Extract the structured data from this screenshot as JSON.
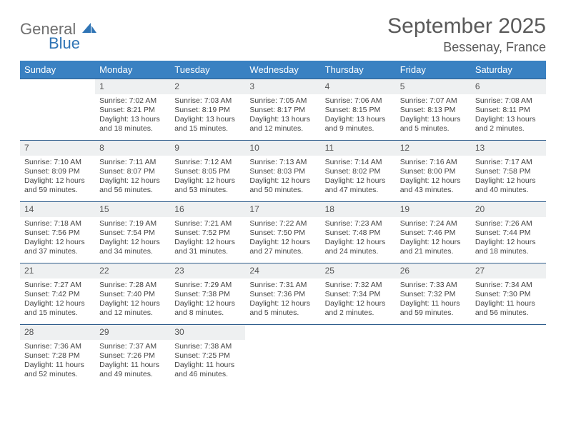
{
  "brand": {
    "name1": "General",
    "name2": "Blue"
  },
  "title": "September 2025",
  "location": "Bessenay, France",
  "header_color": "#3a81c2",
  "border_color": "#2f5d8c",
  "weekdays": [
    "Sunday",
    "Monday",
    "Tuesday",
    "Wednesday",
    "Thursday",
    "Friday",
    "Saturday"
  ],
  "weeks": [
    [
      null,
      {
        "d": "1",
        "sr": "Sunrise: 7:02 AM",
        "ss": "Sunset: 8:21 PM",
        "dl1": "Daylight: 13 hours",
        "dl2": "and 18 minutes."
      },
      {
        "d": "2",
        "sr": "Sunrise: 7:03 AM",
        "ss": "Sunset: 8:19 PM",
        "dl1": "Daylight: 13 hours",
        "dl2": "and 15 minutes."
      },
      {
        "d": "3",
        "sr": "Sunrise: 7:05 AM",
        "ss": "Sunset: 8:17 PM",
        "dl1": "Daylight: 13 hours",
        "dl2": "and 12 minutes."
      },
      {
        "d": "4",
        "sr": "Sunrise: 7:06 AM",
        "ss": "Sunset: 8:15 PM",
        "dl1": "Daylight: 13 hours",
        "dl2": "and 9 minutes."
      },
      {
        "d": "5",
        "sr": "Sunrise: 7:07 AM",
        "ss": "Sunset: 8:13 PM",
        "dl1": "Daylight: 13 hours",
        "dl2": "and 5 minutes."
      },
      {
        "d": "6",
        "sr": "Sunrise: 7:08 AM",
        "ss": "Sunset: 8:11 PM",
        "dl1": "Daylight: 13 hours",
        "dl2": "and 2 minutes."
      }
    ],
    [
      {
        "d": "7",
        "sr": "Sunrise: 7:10 AM",
        "ss": "Sunset: 8:09 PM",
        "dl1": "Daylight: 12 hours",
        "dl2": "and 59 minutes."
      },
      {
        "d": "8",
        "sr": "Sunrise: 7:11 AM",
        "ss": "Sunset: 8:07 PM",
        "dl1": "Daylight: 12 hours",
        "dl2": "and 56 minutes."
      },
      {
        "d": "9",
        "sr": "Sunrise: 7:12 AM",
        "ss": "Sunset: 8:05 PM",
        "dl1": "Daylight: 12 hours",
        "dl2": "and 53 minutes."
      },
      {
        "d": "10",
        "sr": "Sunrise: 7:13 AM",
        "ss": "Sunset: 8:03 PM",
        "dl1": "Daylight: 12 hours",
        "dl2": "and 50 minutes."
      },
      {
        "d": "11",
        "sr": "Sunrise: 7:14 AM",
        "ss": "Sunset: 8:02 PM",
        "dl1": "Daylight: 12 hours",
        "dl2": "and 47 minutes."
      },
      {
        "d": "12",
        "sr": "Sunrise: 7:16 AM",
        "ss": "Sunset: 8:00 PM",
        "dl1": "Daylight: 12 hours",
        "dl2": "and 43 minutes."
      },
      {
        "d": "13",
        "sr": "Sunrise: 7:17 AM",
        "ss": "Sunset: 7:58 PM",
        "dl1": "Daylight: 12 hours",
        "dl2": "and 40 minutes."
      }
    ],
    [
      {
        "d": "14",
        "sr": "Sunrise: 7:18 AM",
        "ss": "Sunset: 7:56 PM",
        "dl1": "Daylight: 12 hours",
        "dl2": "and 37 minutes."
      },
      {
        "d": "15",
        "sr": "Sunrise: 7:19 AM",
        "ss": "Sunset: 7:54 PM",
        "dl1": "Daylight: 12 hours",
        "dl2": "and 34 minutes."
      },
      {
        "d": "16",
        "sr": "Sunrise: 7:21 AM",
        "ss": "Sunset: 7:52 PM",
        "dl1": "Daylight: 12 hours",
        "dl2": "and 31 minutes."
      },
      {
        "d": "17",
        "sr": "Sunrise: 7:22 AM",
        "ss": "Sunset: 7:50 PM",
        "dl1": "Daylight: 12 hours",
        "dl2": "and 27 minutes."
      },
      {
        "d": "18",
        "sr": "Sunrise: 7:23 AM",
        "ss": "Sunset: 7:48 PM",
        "dl1": "Daylight: 12 hours",
        "dl2": "and 24 minutes."
      },
      {
        "d": "19",
        "sr": "Sunrise: 7:24 AM",
        "ss": "Sunset: 7:46 PM",
        "dl1": "Daylight: 12 hours",
        "dl2": "and 21 minutes."
      },
      {
        "d": "20",
        "sr": "Sunrise: 7:26 AM",
        "ss": "Sunset: 7:44 PM",
        "dl1": "Daylight: 12 hours",
        "dl2": "and 18 minutes."
      }
    ],
    [
      {
        "d": "21",
        "sr": "Sunrise: 7:27 AM",
        "ss": "Sunset: 7:42 PM",
        "dl1": "Daylight: 12 hours",
        "dl2": "and 15 minutes."
      },
      {
        "d": "22",
        "sr": "Sunrise: 7:28 AM",
        "ss": "Sunset: 7:40 PM",
        "dl1": "Daylight: 12 hours",
        "dl2": "and 12 minutes."
      },
      {
        "d": "23",
        "sr": "Sunrise: 7:29 AM",
        "ss": "Sunset: 7:38 PM",
        "dl1": "Daylight: 12 hours",
        "dl2": "and 8 minutes."
      },
      {
        "d": "24",
        "sr": "Sunrise: 7:31 AM",
        "ss": "Sunset: 7:36 PM",
        "dl1": "Daylight: 12 hours",
        "dl2": "and 5 minutes."
      },
      {
        "d": "25",
        "sr": "Sunrise: 7:32 AM",
        "ss": "Sunset: 7:34 PM",
        "dl1": "Daylight: 12 hours",
        "dl2": "and 2 minutes."
      },
      {
        "d": "26",
        "sr": "Sunrise: 7:33 AM",
        "ss": "Sunset: 7:32 PM",
        "dl1": "Daylight: 11 hours",
        "dl2": "and 59 minutes."
      },
      {
        "d": "27",
        "sr": "Sunrise: 7:34 AM",
        "ss": "Sunset: 7:30 PM",
        "dl1": "Daylight: 11 hours",
        "dl2": "and 56 minutes."
      }
    ],
    [
      {
        "d": "28",
        "sr": "Sunrise: 7:36 AM",
        "ss": "Sunset: 7:28 PM",
        "dl1": "Daylight: 11 hours",
        "dl2": "and 52 minutes."
      },
      {
        "d": "29",
        "sr": "Sunrise: 7:37 AM",
        "ss": "Sunset: 7:26 PM",
        "dl1": "Daylight: 11 hours",
        "dl2": "and 49 minutes."
      },
      {
        "d": "30",
        "sr": "Sunrise: 7:38 AM",
        "ss": "Sunset: 7:25 PM",
        "dl1": "Daylight: 11 hours",
        "dl2": "and 46 minutes."
      },
      null,
      null,
      null,
      null
    ]
  ]
}
